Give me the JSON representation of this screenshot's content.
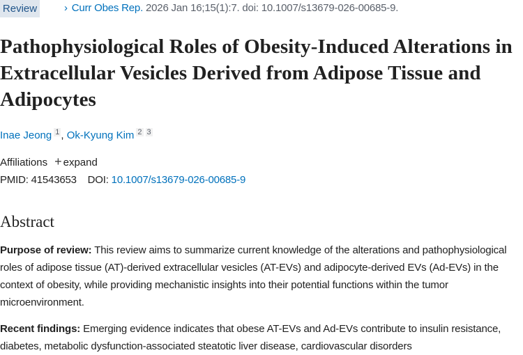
{
  "header": {
    "badge": "Review",
    "journal": "Curr Obes Rep.",
    "citation": " 2026 Jan 16;15(1):7. doi: 10.1007/s13679-026-00685-9."
  },
  "article": {
    "title": "Pathophysiological Roles of Obesity-Induced Alterations in Extracellular Vesicles Derived from Adipose Tissue and Adipocytes",
    "authors": [
      {
        "name": "Inae Jeong",
        "affs": [
          "1"
        ]
      },
      {
        "name": "Ok-Kyung Kim",
        "affs": [
          "2",
          "3"
        ]
      }
    ],
    "affiliations_label": "Affiliations",
    "expand_label": "expand",
    "pmid_label": "PMID:",
    "pmid": "41543653",
    "doi_label": "DOI:",
    "doi": "10.1007/s13679-026-00685-9"
  },
  "abstract": {
    "heading": "Abstract",
    "sections": [
      {
        "label": "Purpose of review:",
        "text": " This review aims to summarize current knowledge of the alterations and pathophysiological roles of adipose tissue (AT)-derived extracellular vesicles (AT-EVs) and adipocyte-derived EVs (Ad-EVs) in the context of obesity, while providing mechanistic insights into their potential functions within the tumor microenvironment."
      },
      {
        "label": "Recent findings:",
        "text": " Emerging evidence indicates that obese AT-EVs and Ad-EVs contribute to insulin resistance, diabetes, metabolic dysfunction-associated steatotic liver disease, cardiovascular disorders"
      }
    ]
  },
  "colors": {
    "link": "#0071bc",
    "badge_bg": "#dfe6ee",
    "badge_text": "#20558a"
  }
}
